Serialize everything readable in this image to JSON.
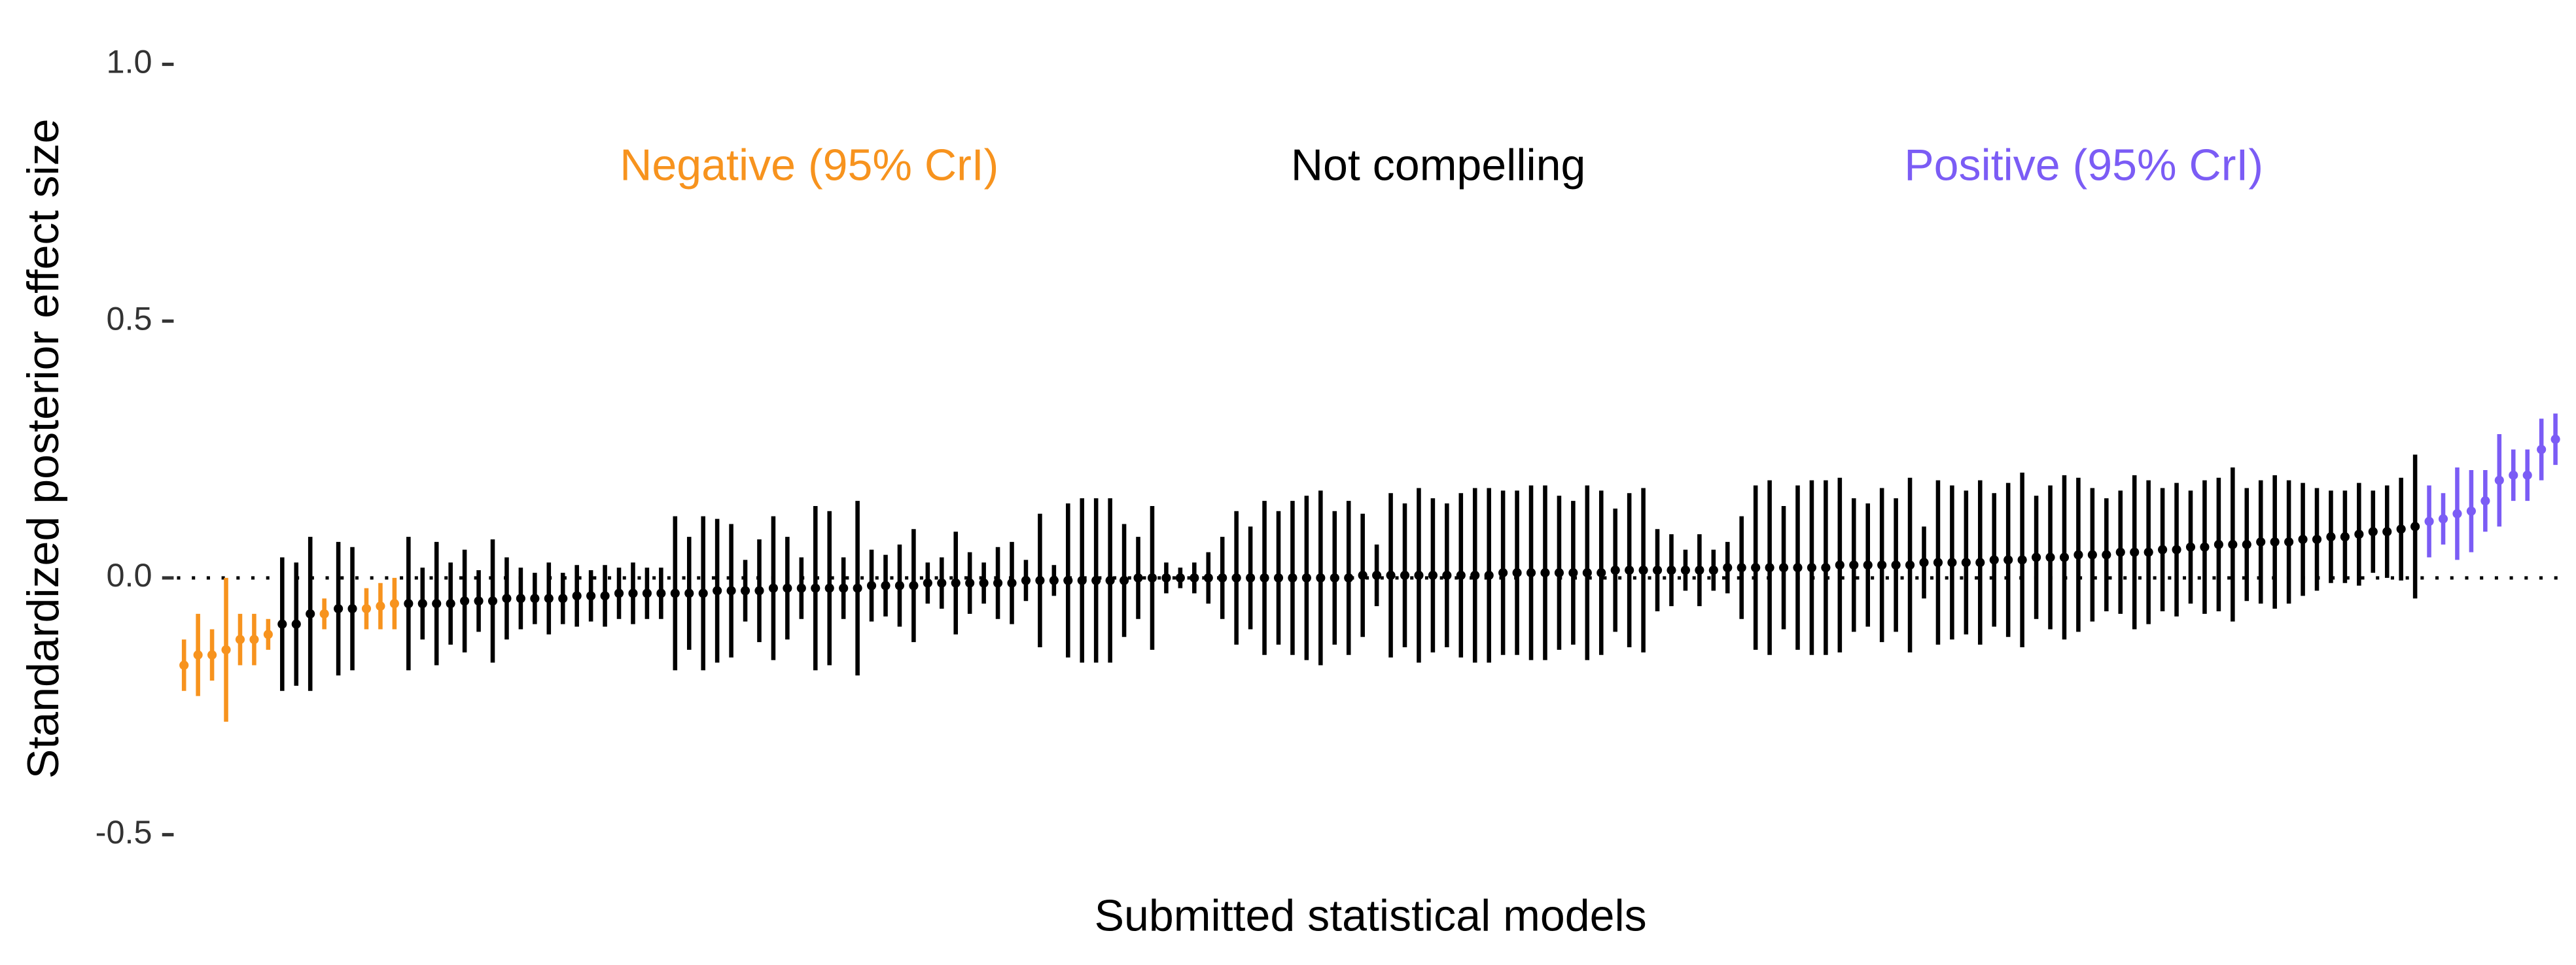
{
  "chart_data": {
    "type": "errorbar",
    "ylabel": "Standardized posterior effect size",
    "xlabel": "Submitted statistical models",
    "xlim": [
      -0.5,
      169.5
    ],
    "ylim": [
      -0.5,
      1.0
    ],
    "yticks": [
      -0.5,
      {
        "value": 0,
        "label": "0.0"
      },
      0.5,
      {
        "value": 1,
        "label": "1.0"
      }
    ],
    "hline": 0,
    "series": [
      {
        "name": "Negative (95% CrI)",
        "color": "#f7931e",
        "x": [
          0,
          1,
          2,
          3,
          4,
          5,
          6,
          10,
          13,
          14,
          15
        ],
        "values": [
          -0.17,
          -0.15,
          -0.15,
          -0.14,
          -0.12,
          -0.12,
          -0.11,
          -0.07,
          -0.06,
          -0.055,
          -0.05
        ],
        "errors": [
          0.05,
          0.08,
          0.05,
          0.14,
          0.05,
          0.05,
          0.03,
          0.03,
          0.04,
          0.045,
          0.05
        ]
      },
      {
        "name": "Not compelling",
        "color": "#000000",
        "x": [
          7,
          8,
          9,
          11,
          12,
          16,
          17,
          18,
          19,
          20,
          21,
          22,
          23,
          24,
          25,
          26,
          27,
          28,
          29,
          30,
          31,
          32,
          33,
          34,
          35,
          36,
          37,
          38,
          39,
          40,
          41,
          42,
          43,
          44,
          45,
          46,
          47,
          48,
          49,
          50,
          51,
          52,
          53,
          54,
          55,
          56,
          57,
          58,
          59,
          60,
          61,
          62,
          63,
          64,
          65,
          66,
          67,
          68,
          69,
          70,
          71,
          72,
          73,
          74,
          75,
          76,
          77,
          78,
          79,
          80,
          81,
          82,
          83,
          84,
          85,
          86,
          87,
          88,
          89,
          90,
          91,
          92,
          93,
          94,
          95,
          96,
          97,
          98,
          99,
          100,
          101,
          102,
          103,
          104,
          105,
          106,
          107,
          108,
          109,
          110,
          111,
          112,
          113,
          114,
          115,
          116,
          117,
          118,
          119,
          120,
          121,
          122,
          123,
          124,
          125,
          126,
          127,
          128,
          129,
          130,
          131,
          132,
          133,
          134,
          135,
          136,
          137,
          138,
          139,
          140,
          141,
          142,
          143,
          144,
          145,
          146,
          147,
          148,
          149,
          150,
          151,
          152,
          153,
          154,
          155,
          156,
          157,
          158,
          159
        ],
        "values": [
          -0.09,
          -0.09,
          -0.07,
          -0.06,
          -0.06,
          -0.05,
          -0.05,
          -0.05,
          -0.05,
          -0.045,
          -0.045,
          -0.045,
          -0.04,
          -0.04,
          -0.04,
          -0.04,
          -0.04,
          -0.035,
          -0.035,
          -0.035,
          -0.03,
          -0.03,
          -0.03,
          -0.03,
          -0.03,
          -0.03,
          -0.03,
          -0.025,
          -0.025,
          -0.025,
          -0.025,
          -0.02,
          -0.02,
          -0.02,
          -0.02,
          -0.02,
          -0.02,
          -0.02,
          -0.015,
          -0.015,
          -0.015,
          -0.015,
          -0.01,
          -0.01,
          -0.01,
          -0.01,
          -0.01,
          -0.01,
          -0.01,
          -0.005,
          -0.005,
          -0.005,
          -0.005,
          -0.005,
          -0.005,
          -0.005,
          -0.005,
          0,
          0,
          0,
          0,
          0,
          0,
          0,
          0,
          0,
          0,
          0,
          0,
          0,
          0,
          0,
          0,
          0.005,
          0.005,
          0.005,
          0.005,
          0.005,
          0.005,
          0.005,
          0.005,
          0.005,
          0.005,
          0.01,
          0.01,
          0.01,
          0.01,
          0.01,
          0.01,
          0.01,
          0.01,
          0.015,
          0.015,
          0.015,
          0.015,
          0.015,
          0.015,
          0.015,
          0.015,
          0.02,
          0.02,
          0.02,
          0.02,
          0.02,
          0.02,
          0.02,
          0.02,
          0.025,
          0.025,
          0.025,
          0.025,
          0.025,
          0.025,
          0.03,
          0.03,
          0.03,
          0.03,
          0.03,
          0.035,
          0.035,
          0.035,
          0.04,
          0.04,
          0.04,
          0.045,
          0.045,
          0.045,
          0.05,
          0.05,
          0.05,
          0.055,
          0.055,
          0.06,
          0.06,
          0.065,
          0.065,
          0.065,
          0.07,
          0.07,
          0.07,
          0.075,
          0.075,
          0.08,
          0.08,
          0.085,
          0.09,
          0.09,
          0.095,
          0.1
        ],
        "errors": [
          0.13,
          0.12,
          0.15,
          0.13,
          0.12,
          0.13,
          0.07,
          0.12,
          0.08,
          0.1,
          0.06,
          0.12,
          0.08,
          0.06,
          0.05,
          0.07,
          0.05,
          0.06,
          0.05,
          0.06,
          0.05,
          0.06,
          0.05,
          0.05,
          0.15,
          0.11,
          0.15,
          0.14,
          0.13,
          0.06,
          0.1,
          0.14,
          0.1,
          0.06,
          0.16,
          0.15,
          0.06,
          0.17,
          0.07,
          0.06,
          0.08,
          0.11,
          0.04,
          0.05,
          0.1,
          0.06,
          0.04,
          0.07,
          0.08,
          0.04,
          0.13,
          0.03,
          0.15,
          0.16,
          0.16,
          0.16,
          0.11,
          0.08,
          0.14,
          0.03,
          0.02,
          0.03,
          0.05,
          0.08,
          0.13,
          0.1,
          0.15,
          0.13,
          0.15,
          0.16,
          0.17,
          0.13,
          0.15,
          0.12,
          0.06,
          0.16,
          0.14,
          0.17,
          0.15,
          0.14,
          0.16,
          0.17,
          0.17,
          0.16,
          0.16,
          0.17,
          0.17,
          0.15,
          0.14,
          0.17,
          0.16,
          0.12,
          0.15,
          0.16,
          0.08,
          0.07,
          0.04,
          0.07,
          0.04,
          0.05,
          0.1,
          0.16,
          0.17,
          0.12,
          0.16,
          0.17,
          0.17,
          0.17,
          0.13,
          0.12,
          0.15,
          0.13,
          0.17,
          0.07,
          0.16,
          0.15,
          0.14,
          0.16,
          0.13,
          0.15,
          0.17,
          0.12,
          0.14,
          0.16,
          0.15,
          0.13,
          0.11,
          0.12,
          0.15,
          0.14,
          0.12,
          0.13,
          0.11,
          0.13,
          0.13,
          0.15,
          0.11,
          0.12,
          0.13,
          0.12,
          0.11,
          0.1,
          0.09,
          0.09,
          0.1,
          0.08,
          0.09,
          0.1,
          0.14
        ]
      },
      {
        "name": "Positive (95% CrI)",
        "color": "#7b5cf5",
        "x": [
          160,
          161,
          162,
          163,
          164,
          165,
          166,
          167,
          168,
          169
        ],
        "values": [
          0.11,
          0.115,
          0.125,
          0.13,
          0.15,
          0.19,
          0.2,
          0.2,
          0.25,
          0.27
        ],
        "errors": [
          0.07,
          0.05,
          0.09,
          0.08,
          0.06,
          0.09,
          0.05,
          0.05,
          0.06,
          0.05
        ]
      }
    ]
  }
}
